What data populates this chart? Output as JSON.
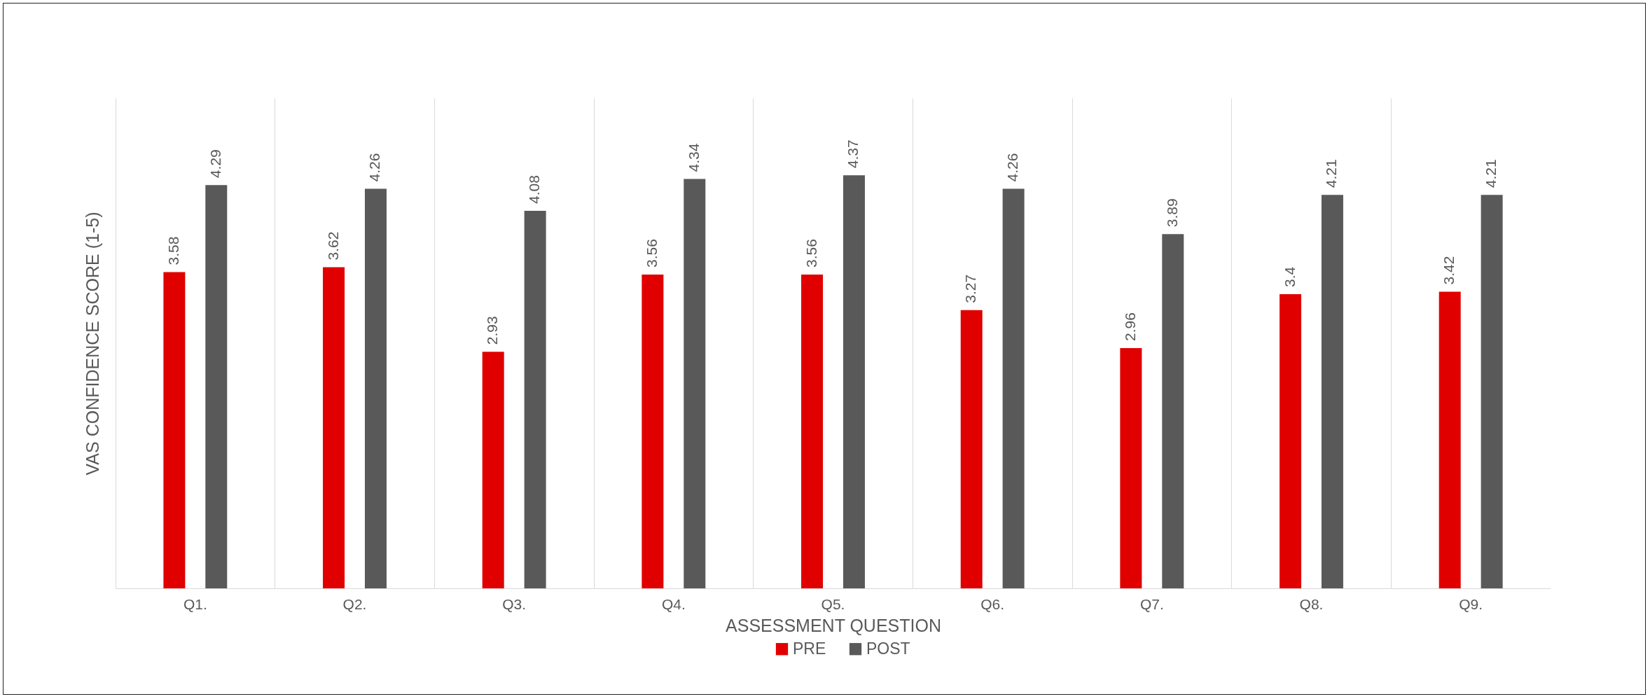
{
  "chart_data": {
    "type": "bar",
    "xlabel": "ASSESSMENT QUESTION",
    "ylabel": "VAS CONFIDENCE SCORE (1-5)",
    "categories": [
      "Q1.",
      "Q2.",
      "Q3.",
      "Q4.",
      "Q5.",
      "Q6.",
      "Q7.",
      "Q8.",
      "Q9."
    ],
    "series": [
      {
        "name": "PRE",
        "color": "#e00000",
        "values": [
          3.58,
          3.62,
          2.93,
          3.56,
          3.56,
          3.27,
          2.96,
          3.4,
          3.42
        ]
      },
      {
        "name": "POST",
        "color": "#595959",
        "values": [
          4.29,
          4.26,
          4.08,
          4.34,
          4.37,
          4.26,
          3.89,
          4.21,
          4.21
        ]
      }
    ],
    "ylim": [
      1,
      5
    ],
    "grid": "x",
    "legend": "bottom",
    "data_labels": true,
    "tick_labels": "x"
  }
}
